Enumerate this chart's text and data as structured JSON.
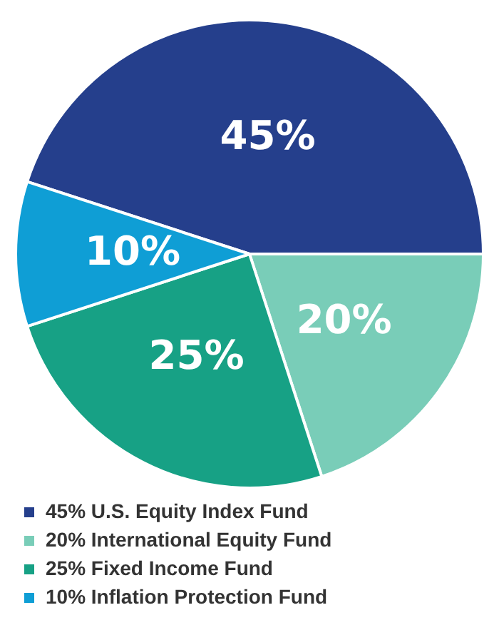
{
  "chart_data": {
    "type": "pie",
    "categories": [
      "45% U.S. Equity Index Fund",
      "20% International Equity Fund",
      "25% Fixed Income Fund",
      "10% Inflation Protection Fund"
    ],
    "values": [
      45,
      20,
      25,
      10
    ],
    "value_labels": [
      "45%",
      "20%",
      "25%",
      "10%"
    ],
    "colors": [
      "#253f8c",
      "#79cdb8",
      "#17a185",
      "#0f9ed5"
    ],
    "legend": "bottom"
  }
}
